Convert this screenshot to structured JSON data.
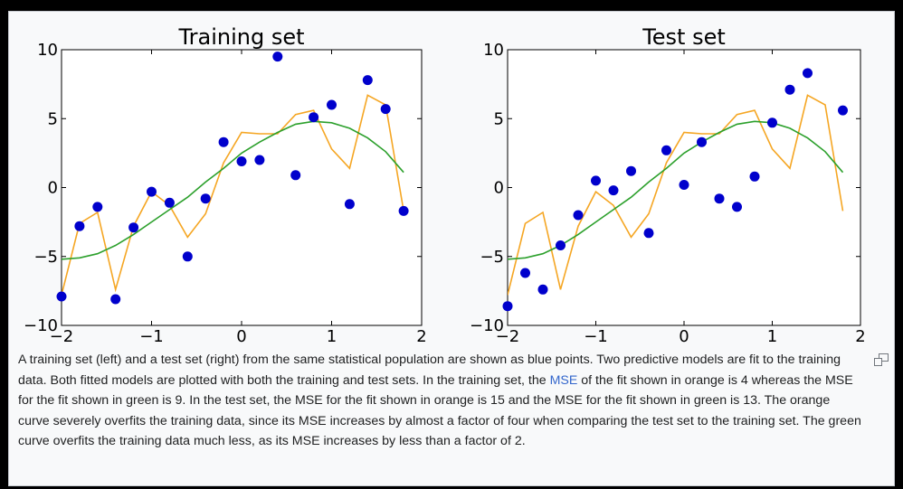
{
  "chart_data": [
    {
      "type": "scatter",
      "title": "Training set",
      "xlim": [
        -2,
        2
      ],
      "ylim": [
        -10,
        10
      ],
      "xticks": [
        "−2",
        "−1",
        "0",
        "1",
        "2"
      ],
      "yticks": [
        "−10",
        "−5",
        "0",
        "5",
        "10"
      ],
      "grid": false,
      "series": [
        {
          "kind": "scatter",
          "color": "#0000cc",
          "x": [
            -2.0,
            -1.8,
            -1.6,
            -1.4,
            -1.2,
            -1.0,
            -0.8,
            -0.6,
            -0.4,
            -0.2,
            0.0,
            0.2,
            0.4,
            0.6,
            0.8,
            1.0,
            1.2,
            1.4,
            1.6,
            1.8
          ],
          "y": [
            -7.9,
            -2.8,
            -1.4,
            -8.1,
            -2.9,
            -0.3,
            -1.1,
            -5.0,
            -0.8,
            3.3,
            1.9,
            2.0,
            9.5,
            0.9,
            5.1,
            6.0,
            -1.2,
            7.8,
            5.7,
            -1.7
          ]
        },
        {
          "kind": "line",
          "color": "#f5a623",
          "x": [
            -2.0,
            -1.8,
            -1.6,
            -1.4,
            -1.2,
            -1.0,
            -0.8,
            -0.6,
            -0.4,
            -0.2,
            0.0,
            0.2,
            0.4,
            0.6,
            0.8,
            1.0,
            1.2,
            1.4,
            1.6,
            1.8
          ],
          "y": [
            -7.8,
            -2.6,
            -1.8,
            -7.4,
            -2.8,
            -0.3,
            -1.3,
            -3.6,
            -1.9,
            1.8,
            4.0,
            3.9,
            3.9,
            5.3,
            5.6,
            2.8,
            1.4,
            6.7,
            6.0,
            -1.7
          ]
        },
        {
          "kind": "line",
          "color": "#2ca02c",
          "x": [
            -2.0,
            -1.8,
            -1.6,
            -1.4,
            -1.2,
            -1.0,
            -0.8,
            -0.6,
            -0.4,
            -0.2,
            0.0,
            0.2,
            0.4,
            0.6,
            0.8,
            1.0,
            1.2,
            1.4,
            1.6,
            1.8
          ],
          "y": [
            -5.2,
            -5.1,
            -4.8,
            -4.2,
            -3.4,
            -2.5,
            -1.6,
            -0.7,
            0.4,
            1.4,
            2.5,
            3.3,
            4.0,
            4.6,
            4.8,
            4.7,
            4.3,
            3.6,
            2.6,
            1.1
          ]
        }
      ]
    },
    {
      "type": "scatter",
      "title": "Test set",
      "xlim": [
        -2,
        2
      ],
      "ylim": [
        -10,
        10
      ],
      "xticks": [
        "−2",
        "−1",
        "0",
        "1",
        "2"
      ],
      "yticks": [
        "−10",
        "−5",
        "0",
        "5",
        "10"
      ],
      "grid": false,
      "series": [
        {
          "kind": "scatter",
          "color": "#0000cc",
          "x": [
            -2.0,
            -1.8,
            -1.6,
            -1.4,
            -1.2,
            -1.0,
            -0.8,
            -0.6,
            -0.4,
            -0.2,
            0.0,
            0.2,
            0.4,
            0.6,
            0.8,
            1.0,
            1.2,
            1.4,
            1.6,
            1.8
          ],
          "y": [
            -8.6,
            -6.2,
            -7.4,
            -4.2,
            -2.0,
            0.5,
            -0.2,
            1.2,
            -3.3,
            2.7,
            0.2,
            3.3,
            -0.8,
            -1.4,
            0.8,
            4.7,
            7.1,
            8.3,
            null,
            5.6
          ]
        },
        {
          "kind": "line",
          "color": "#f5a623",
          "x": [
            -2.0,
            -1.8,
            -1.6,
            -1.4,
            -1.2,
            -1.0,
            -0.8,
            -0.6,
            -0.4,
            -0.2,
            0.0,
            0.2,
            0.4,
            0.6,
            0.8,
            1.0,
            1.2,
            1.4,
            1.6,
            1.8
          ],
          "y": [
            -7.8,
            -2.6,
            -1.8,
            -7.4,
            -2.8,
            -0.3,
            -1.3,
            -3.6,
            -1.9,
            1.8,
            4.0,
            3.9,
            3.9,
            5.3,
            5.6,
            2.8,
            1.4,
            6.7,
            6.0,
            -1.7
          ]
        },
        {
          "kind": "line",
          "color": "#2ca02c",
          "x": [
            -2.0,
            -1.8,
            -1.6,
            -1.4,
            -1.2,
            -1.0,
            -0.8,
            -0.6,
            -0.4,
            -0.2,
            0.0,
            0.2,
            0.4,
            0.6,
            0.8,
            1.0,
            1.2,
            1.4,
            1.6,
            1.8
          ],
          "y": [
            -5.2,
            -5.1,
            -4.8,
            -4.2,
            -3.4,
            -2.5,
            -1.6,
            -0.7,
            0.4,
            1.4,
            2.5,
            3.3,
            4.0,
            4.6,
            4.8,
            4.7,
            4.3,
            3.6,
            2.6,
            1.1
          ]
        }
      ]
    }
  ],
  "caption": {
    "part1": "A training set (left) and a test set (right) from the same statistical population are shown as blue points. Two predictive models are fit to the training data. Both fitted models are plotted with both the training and test sets. In the training set, the ",
    "link": "MSE",
    "part2": " of the fit shown in orange is 4 whereas the MSE for the fit shown in green is 9. In the test set, the MSE for the fit shown in orange is 15 and the MSE for the fit shown in green is 13. The orange curve severely overfits the training data, since its MSE increases by almost a factor of four when comparing the test set to the training set. The green curve overfits the training data much less, as its MSE increases by less than a factor of 2."
  },
  "icons": {
    "enlarge": "enlarge-icon"
  }
}
